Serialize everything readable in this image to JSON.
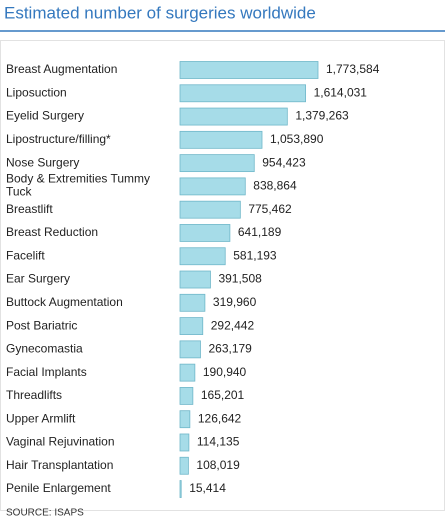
{
  "chart_data": {
    "type": "bar",
    "orientation": "horizontal",
    "title": "Estimated number of surgeries worldwide",
    "categories": [
      "Breast Augmentation",
      "Liposuction",
      "Eyelid Surgery",
      "Lipostructure/filling*",
      "Nose Surgery",
      "Body & Extremities Tummy Tuck",
      "Breastlift",
      "Breast Reduction",
      "Facelift",
      "Ear Surgery",
      "Buttock Augmentation",
      "Post Bariatric",
      "Gynecomastia",
      "Facial Implants",
      "Threadlifts",
      "Upper Armlift",
      "Vaginal Rejuvination",
      "Hair Transplantation",
      "Penile Enlargement"
    ],
    "values": [
      1773584,
      1614031,
      1379263,
      1053890,
      954423,
      838864,
      775462,
      641189,
      581193,
      391508,
      319960,
      292442,
      263179,
      190940,
      165201,
      126642,
      114135,
      108019,
      15414
    ],
    "value_labels": [
      "1,773,584",
      "1,614,031",
      "1,379,263",
      "1,053,890",
      "954,423",
      "838,864",
      "775,462",
      "641,189",
      "581,193",
      "391,508",
      "319,960",
      "292,442",
      "263,179",
      "190,940",
      "165,201",
      "126,642",
      "114,135",
      "108,019",
      "15,414"
    ],
    "color": "#a6dce8",
    "source": "SOURCE: ISAPS"
  }
}
